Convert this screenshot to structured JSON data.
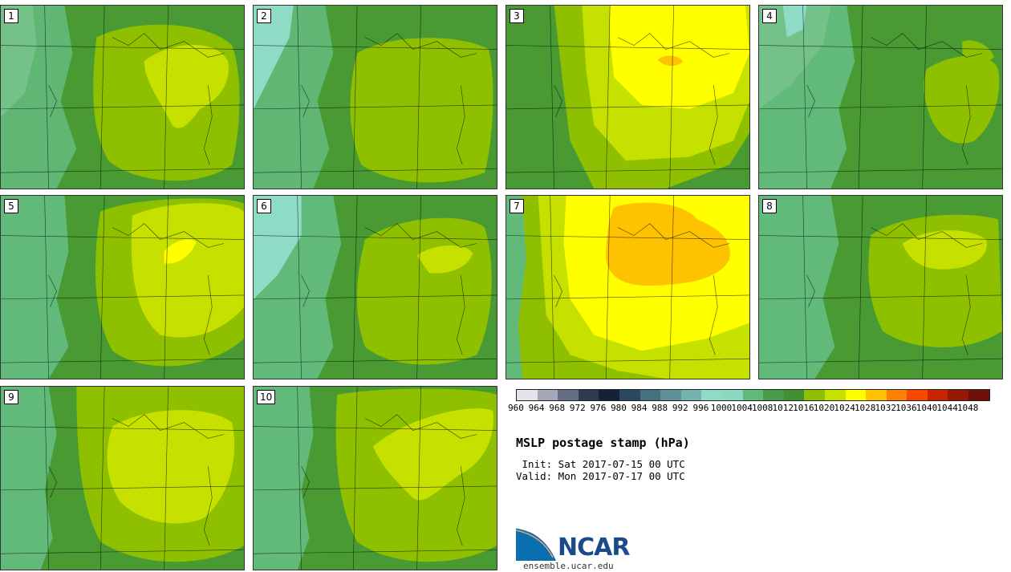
{
  "panels": [
    {
      "label": "1",
      "blob_color": "#8ec000",
      "core_color": "#c6e000",
      "core2_color": ""
    },
    {
      "label": "2",
      "blob_color": "#8ec000",
      "core_color": "",
      "core2_color": ""
    },
    {
      "label": "3",
      "blob_color": "#c6e000",
      "core_color": "#ffff00",
      "core2_color": "#ffc200"
    },
    {
      "label": "4",
      "blob_color": "#4a9a34",
      "core_color": "#8ec000",
      "core2_color": ""
    },
    {
      "label": "5",
      "blob_color": "#8ec000",
      "core_color": "#c6e000",
      "core2_color": "#ffff00"
    },
    {
      "label": "6",
      "blob_color": "#8ec000",
      "core_color": "#c6e000",
      "core2_color": ""
    },
    {
      "label": "7",
      "blob_color": "#ffff00",
      "core_color": "#ffc200",
      "core2_color": ""
    },
    {
      "label": "8",
      "blob_color": "#8ec000",
      "core_color": "#c6e000",
      "core2_color": ""
    },
    {
      "label": "9",
      "blob_color": "#8ec000",
      "core_color": "#c6e000",
      "core2_color": ""
    },
    {
      "label": "10",
      "blob_color": "#8ec000",
      "core_color": "#c6e000",
      "core2_color": ""
    }
  ],
  "colorbar": {
    "colors": [
      "#e2e4ea",
      "#a4a8b8",
      "#646e82",
      "#2e3a52",
      "#142238",
      "#2a4862",
      "#46707e",
      "#5e9294",
      "#74b2b0",
      "#8edcc6",
      "#8ad8c0",
      "#62ba7a",
      "#4a9a4c",
      "#3e9030",
      "#8ec000",
      "#c6e000",
      "#ffff00",
      "#ffc200",
      "#ff8000",
      "#f84800",
      "#c82400",
      "#961800",
      "#6e1008"
    ],
    "ticks": [
      "960",
      "964",
      "968",
      "972",
      "976",
      "980",
      "984",
      "988",
      "992",
      "996",
      "1000",
      "1004",
      "1008",
      "1012",
      "1016",
      "1020",
      "1024",
      "1028",
      "1032",
      "1036",
      "1040",
      "1044",
      "1048"
    ]
  },
  "title": "MSLP postage stamp (hPa)",
  "init": " Init: Sat 2017-07-15 00 UTC",
  "valid": "Valid: Mon 2017-07-17 00 UTC",
  "logo": {
    "text": "NCAR",
    "site": "ensemble.ucar.edu"
  }
}
